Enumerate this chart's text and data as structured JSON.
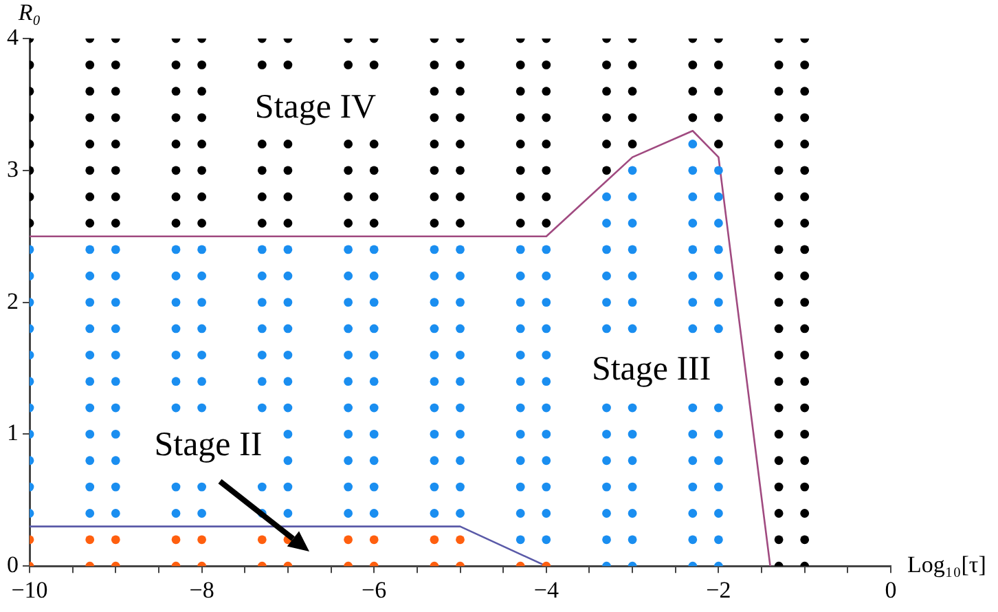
{
  "chart_data": {
    "type": "scatter",
    "xlabel": "Log₁₀[τ]",
    "ylabel": "R₀",
    "xlim": [
      -10,
      0
    ],
    "ylim": [
      0,
      4
    ],
    "xticks": [
      {
        "value": -10,
        "label": "−10"
      },
      {
        "value": -9.5,
        "label": null
      },
      {
        "value": -9,
        "label": null
      },
      {
        "value": -8.5,
        "label": null
      },
      {
        "value": -8,
        "label": "−8"
      },
      {
        "value": -7.5,
        "label": null
      },
      {
        "value": -7,
        "label": null
      },
      {
        "value": -6.5,
        "label": null
      },
      {
        "value": -6,
        "label": "−6"
      },
      {
        "value": -5.5,
        "label": null
      },
      {
        "value": -5,
        "label": null
      },
      {
        "value": -4.5,
        "label": null
      },
      {
        "value": -4,
        "label": "−4"
      },
      {
        "value": -3.5,
        "label": null
      },
      {
        "value": -3,
        "label": null
      },
      {
        "value": -2.5,
        "label": null
      },
      {
        "value": -2,
        "label": "−2"
      },
      {
        "value": -1.5,
        "label": null
      },
      {
        "value": -1,
        "label": null
      },
      {
        "value": -0.5,
        "label": null
      },
      0
    ],
    "yticks": [
      0,
      1,
      2,
      3,
      4
    ],
    "marker": "circle",
    "grid": false,
    "legend": false,
    "annotations": [
      "Stage IV",
      "Stage III",
      {
        "text": "Stage II",
        "x": -7,
        "y": 0.2
      }
    ],
    "series": [
      {
        "color": "#000000",
        "x": [
          -10,
          -10,
          -10,
          -10,
          -10,
          -10,
          -10,
          -10,
          -9.3,
          -9.3,
          -9.3,
          -9.3,
          -9.3,
          -9.3,
          -9.3,
          -9.3,
          -9,
          -9,
          -9,
          -9,
          -9,
          -9,
          -9,
          -9,
          -8.3,
          -8.3,
          -8.3,
          -8.3,
          -8.3,
          -8.3,
          -8.3,
          -8.3,
          -8,
          -8,
          -8,
          -8,
          -8,
          -8,
          -8,
          -8,
          -7.3,
          -7.3,
          -7.3,
          -7.3,
          -7.3,
          -7.3,
          -7,
          -7,
          -7,
          -7,
          -7,
          -7,
          -6.3,
          -6.3,
          -6.3,
          -6.3,
          -6.3,
          -6.3,
          -6,
          -6,
          -6,
          -6,
          -6,
          -6,
          -5.3,
          -5.3,
          -5.3,
          -5.3,
          -5.3,
          -5.3,
          -5.3,
          -5.3,
          -5,
          -5,
          -5,
          -5,
          -5,
          -5,
          -5,
          -5,
          -4.3,
          -4.3,
          -4.3,
          -4.3,
          -4.3,
          -4.3,
          -4.3,
          -4.3,
          -4,
          -4,
          -4,
          -4,
          -4,
          -4,
          -4,
          -4,
          -3.3,
          -3.3,
          -3.3,
          -3.3,
          -3.3,
          -3.3,
          -3,
          -3,
          -3,
          -3,
          -3,
          -2.3,
          -2.3,
          -2.3,
          -2.3,
          -2,
          -2,
          -2,
          -2,
          -2,
          -1.3,
          -1.3,
          -1.3,
          -1.3,
          -1.3,
          -1.3,
          -1.3,
          -1.3,
          -1.3,
          -1.3,
          -1.3,
          -1.3,
          -1.3,
          -1.3,
          -1.3,
          -1.3,
          -1.3,
          -1.3,
          -1.3,
          -1.3,
          -1.3,
          -1,
          -1,
          -1,
          -1,
          -1,
          -1,
          -1,
          -1,
          -1,
          -1,
          -1,
          -1,
          -1,
          -1,
          -1,
          -1,
          -1,
          -1,
          -1,
          -1,
          -1
        ],
        "values": [
          2.6,
          2.8,
          3,
          3.2,
          3.4,
          3.6,
          3.8,
          4,
          2.6,
          2.8,
          3,
          3.2,
          3.4,
          3.6,
          3.8,
          4,
          2.6,
          2.8,
          3,
          3.2,
          3.4,
          3.6,
          3.8,
          4,
          2.6,
          2.8,
          3,
          3.2,
          3.4,
          3.6,
          3.8,
          4,
          2.6,
          2.8,
          3,
          3.2,
          3.4,
          3.6,
          3.8,
          4,
          2.6,
          2.8,
          3,
          3.2,
          3.8,
          4,
          2.6,
          2.8,
          3,
          3.2,
          3.8,
          4,
          2.6,
          2.8,
          3,
          3.2,
          3.8,
          4,
          2.6,
          2.8,
          3,
          3.2,
          3.8,
          4,
          2.6,
          2.8,
          3,
          3.2,
          3.4,
          3.6,
          3.8,
          4,
          2.6,
          2.8,
          3,
          3.2,
          3.4,
          3.6,
          3.8,
          4,
          2.6,
          2.8,
          3,
          3.2,
          3.4,
          3.6,
          3.8,
          4,
          2.6,
          2.8,
          3,
          3.2,
          3.4,
          3.6,
          3.8,
          4,
          3,
          3.2,
          3.4,
          3.6,
          3.8,
          4,
          3.2,
          3.4,
          3.6,
          3.8,
          4,
          3.4,
          3.6,
          3.8,
          4,
          3.2,
          3.4,
          3.6,
          3.8,
          4,
          0,
          0.2,
          0.4,
          0.6,
          0.8,
          1,
          1.2,
          1.4,
          1.6,
          1.8,
          2,
          2.2,
          2.4,
          2.6,
          2.8,
          3,
          3.2,
          3.4,
          3.6,
          3.8,
          4,
          0,
          0.2,
          0.4,
          0.6,
          0.8,
          1,
          1.2,
          1.4,
          1.6,
          1.8,
          2,
          2.2,
          2.4,
          2.6,
          2.8,
          3,
          3.2,
          3.4,
          3.6,
          3.8,
          4
        ]
      },
      {
        "color": "#1a8ef0",
        "x": [
          -10,
          -10,
          -10,
          -10,
          -10,
          -10,
          -10,
          -10,
          -10,
          -10,
          -10,
          -9.3,
          -9.3,
          -9.3,
          -9.3,
          -9.3,
          -9.3,
          -9.3,
          -9.3,
          -9.3,
          -9.3,
          -9.3,
          -9,
          -9,
          -9,
          -9,
          -9,
          -9,
          -9,
          -9,
          -9,
          -9,
          -9,
          -8.3,
          -8.3,
          -8.3,
          -8.3,
          -8.3,
          -8.3,
          -8.3,
          -8.3,
          -8.3,
          -8,
          -8,
          -8,
          -8,
          -8,
          -8,
          -8,
          -8,
          -8,
          -7.3,
          -7.3,
          -7.3,
          -7.3,
          -7.3,
          -7.3,
          -7.3,
          -7.3,
          -7.3,
          -7,
          -7,
          -7,
          -7,
          -7,
          -7,
          -7,
          -7,
          -7,
          -7,
          -7,
          -6.3,
          -6.3,
          -6.3,
          -6.3,
          -6.3,
          -6.3,
          -6.3,
          -6.3,
          -6.3,
          -6.3,
          -6.3,
          -6,
          -6,
          -6,
          -6,
          -6,
          -6,
          -6,
          -6,
          -6,
          -6,
          -6,
          -5.3,
          -5.3,
          -5.3,
          -5.3,
          -5.3,
          -5.3,
          -5.3,
          -5.3,
          -5.3,
          -5.3,
          -5.3,
          -5,
          -5,
          -5,
          -5,
          -5,
          -5,
          -5,
          -5,
          -5,
          -5,
          -5,
          -4.3,
          -4.3,
          -4.3,
          -4.3,
          -4.3,
          -4.3,
          -4.3,
          -4.3,
          -4.3,
          -4.3,
          -4.3,
          -4.3,
          -4,
          -4,
          -4,
          -4,
          -4,
          -4,
          -4,
          -4,
          -4,
          -4,
          -4,
          -4,
          -3.3,
          -3.3,
          -3.3,
          -3.3,
          -3.3,
          -3.3,
          -3.3,
          -3.3,
          -3.3,
          -3.3,
          -3.3,
          -3.3,
          -3.3,
          -3,
          -3,
          -3,
          -3,
          -3,
          -3,
          -3,
          -3,
          -3,
          -3,
          -3,
          -3,
          -3,
          -3,
          -2.3,
          -2.3,
          -2.3,
          -2.3,
          -2.3,
          -2.3,
          -2.3,
          -2.3,
          -2.3,
          -2.3,
          -2.3,
          -2.3,
          -2.3,
          -2.3,
          -2.3,
          -2,
          -2,
          -2,
          -2,
          -2,
          -2,
          -2,
          -2,
          -2,
          -2,
          -2,
          -2,
          -2,
          -2
        ],
        "values": [
          0.4,
          0.6,
          0.8,
          1,
          1.2,
          1.4,
          1.6,
          1.8,
          2,
          2.2,
          2.4,
          0.4,
          0.6,
          0.8,
          1,
          1.2,
          1.4,
          1.6,
          1.8,
          2,
          2.2,
          2.4,
          0.4,
          0.6,
          0.8,
          1,
          1.2,
          1.4,
          1.6,
          1.8,
          2,
          2.2,
          2.4,
          0.4,
          0.6,
          1.2,
          1.4,
          1.6,
          1.8,
          2,
          2.2,
          2.4,
          0.4,
          0.6,
          1.2,
          1.4,
          1.6,
          1.8,
          2,
          2.2,
          2.4,
          0.4,
          0.6,
          1.2,
          1.4,
          1.6,
          1.8,
          2,
          2.2,
          2.4,
          0.4,
          0.6,
          0.8,
          1,
          1.2,
          1.4,
          1.6,
          1.8,
          2,
          2.2,
          2.4,
          0.4,
          0.6,
          0.8,
          1,
          1.2,
          1.4,
          1.6,
          1.8,
          2,
          2.2,
          2.4,
          0.4,
          0.6,
          0.8,
          1,
          1.2,
          1.4,
          1.6,
          1.8,
          2,
          2.2,
          2.4,
          0.4,
          0.6,
          0.8,
          1,
          1.2,
          1.4,
          1.6,
          1.8,
          2,
          2.2,
          2.4,
          0.4,
          0.6,
          0.8,
          1,
          1.2,
          1.4,
          1.6,
          1.8,
          2,
          2.2,
          2.4,
          0.2,
          0.4,
          0.6,
          0.8,
          1,
          1.2,
          1.4,
          1.6,
          1.8,
          2,
          2.2,
          2.4,
          0.2,
          0.4,
          0.6,
          0.8,
          1,
          1.2,
          1.4,
          1.6,
          1.8,
          2,
          2.2,
          2.4,
          0,
          0.2,
          0.4,
          0.6,
          0.8,
          1,
          1.2,
          1.8,
          2,
          2.2,
          2.4,
          2.6,
          2.8,
          0,
          0.2,
          0.4,
          0.6,
          0.8,
          1,
          1.2,
          1.8,
          2,
          2.2,
          2.4,
          2.6,
          2.8,
          3,
          0,
          0.2,
          0.4,
          0.6,
          0.8,
          1,
          1.2,
          1.8,
          2,
          2.2,
          2.4,
          2.6,
          2.8,
          3,
          3.2,
          0,
          0.2,
          0.4,
          0.6,
          0.8,
          1,
          1.2,
          1.8,
          2,
          2.2,
          2.4,
          2.6,
          2.8,
          3
        ]
      },
      {
        "color": "#ff5f0f",
        "x": [
          -10,
          -10,
          -9.3,
          -9.3,
          -9,
          -9,
          -8.3,
          -8.3,
          -8,
          -8,
          -7.3,
          -7.3,
          -7,
          -7,
          -6.3,
          -6.3,
          -6,
          -6,
          -5.3,
          -5.3,
          -5,
          -5,
          -4.3,
          -4
        ],
        "values": [
          0,
          0.2,
          0,
          0.2,
          0,
          0.2,
          0,
          0.2,
          0,
          0.2,
          0,
          0.2,
          0,
          0.2,
          0,
          0.2,
          0,
          0.2,
          0,
          0.2,
          0,
          0.2,
          0,
          0
        ]
      },
      {
        "type": "line",
        "marker": "none",
        "color": "#a04a80",
        "x": [
          -10,
          -4,
          -3,
          -2.3,
          -2,
          -1.4
        ],
        "values": [
          2.5,
          2.5,
          3.1,
          3.3,
          3.1,
          0
        ]
      },
      {
        "type": "line",
        "marker": "none",
        "color": "#5a5aa8",
        "x": [
          -10,
          -5,
          -4
        ],
        "values": [
          0.3,
          0.3,
          0
        ]
      }
    ]
  }
}
